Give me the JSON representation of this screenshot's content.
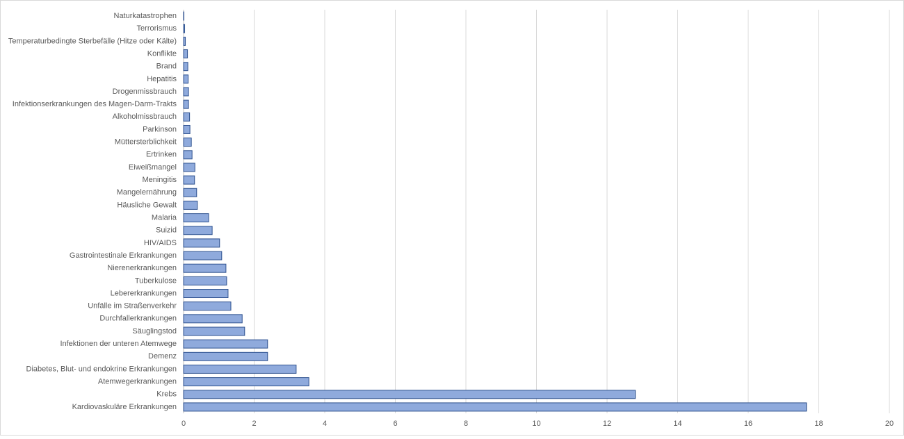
{
  "chart_data": {
    "type": "barh",
    "categories": [
      "Naturkatastrophen",
      "Terrorismus",
      "Temperaturbedingte Sterbefälle (Hitze oder Kälte)",
      "Konflikte",
      "Brand",
      "Hepatitis",
      "Drogenmissbrauch",
      "Infektionserkrankungen des Magen-Darm-Trakts",
      "Alkoholmissbrauch",
      "Parkinson",
      "Müttersterblichkeit",
      "Ertrinken",
      "Eiweißmangel",
      "Meningitis",
      "Mangelernährung",
      "Häusliche Gewalt",
      "Malaria",
      "Suizid",
      "HIV/AIDS",
      "Gastrointestinale Erkrankungen",
      "Nierenerkrankungen",
      "Tuberkulose",
      "Lebererkrankungen",
      "Unfälle im Straßenverkehr",
      "Durchfallerkrankungen",
      "Säuglingstod",
      "Infektionen der unteren Atemwege",
      "Demenz",
      "Diabetes, Blut- und endokrine Erkrankungen",
      "Atemwegerkrankungen",
      "Krebs",
      "Kardiovaskuläre Erkrankungen"
    ],
    "values": [
      0.01,
      0.03,
      0.05,
      0.11,
      0.12,
      0.13,
      0.14,
      0.14,
      0.17,
      0.18,
      0.22,
      0.24,
      0.32,
      0.31,
      0.37,
      0.39,
      0.71,
      0.81,
      1.02,
      1.08,
      1.2,
      1.22,
      1.26,
      1.34,
      1.66,
      1.73,
      2.38,
      2.38,
      3.19,
      3.55,
      12.8,
      17.65
    ],
    "color": "#8faadc",
    "xlim": [
      0,
      20
    ],
    "xticks": [
      0,
      2,
      4,
      6,
      8,
      10,
      12,
      14,
      16,
      18,
      20
    ],
    "grid": true
  }
}
